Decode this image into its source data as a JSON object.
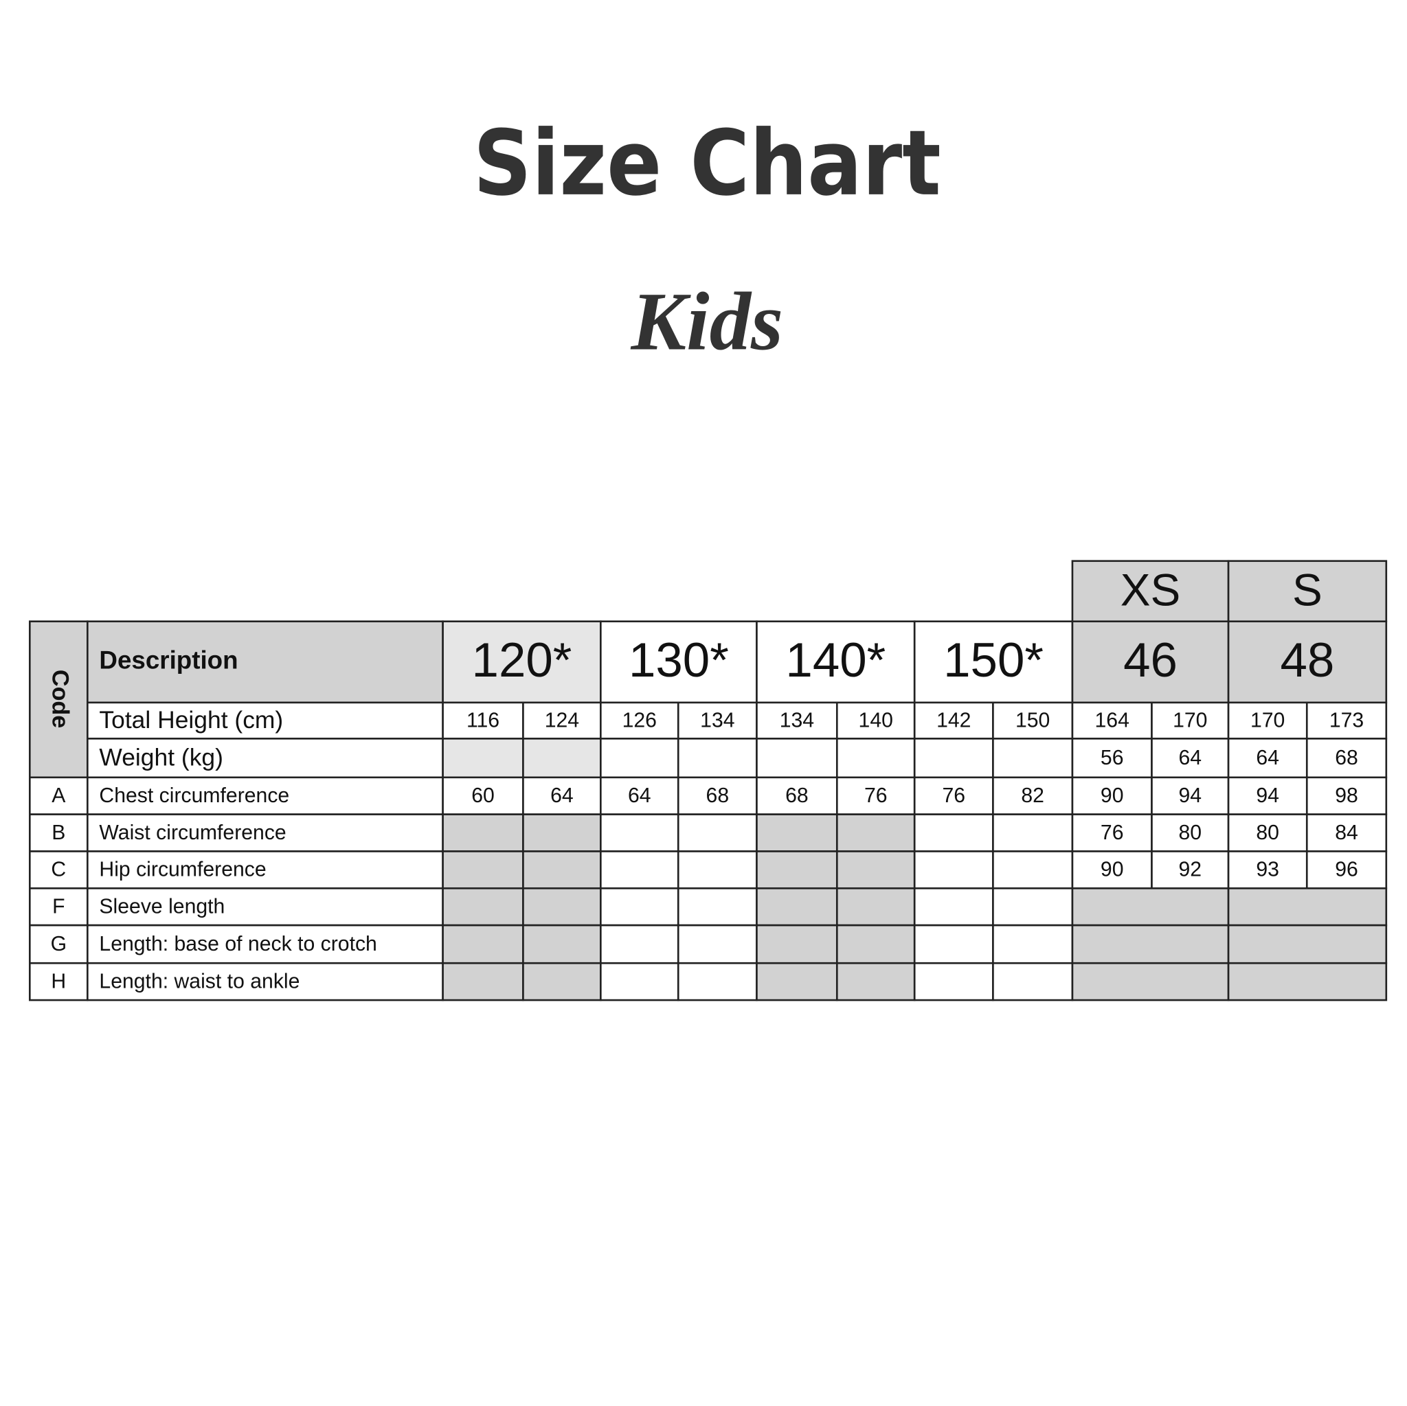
{
  "header": {
    "title": "Size Chart",
    "subtitle": "Kids"
  },
  "table": {
    "code_header": "Code",
    "description_header": "Description",
    "size_letters": [
      null,
      null,
      null,
      null,
      "XS",
      "S"
    ],
    "sizes": [
      "120*",
      "130*",
      "140*",
      "150*",
      "46",
      "48"
    ],
    "rows": [
      {
        "label": "Total Height (cm)",
        "values": [
          116,
          124,
          126,
          134,
          134,
          140,
          142,
          150,
          164,
          170,
          170,
          173
        ]
      },
      {
        "label": "Weight (kg)",
        "values": [
          null,
          null,
          null,
          null,
          null,
          null,
          null,
          null,
          56,
          64,
          64,
          68
        ]
      },
      {
        "code": "A",
        "label": "Chest circumference",
        "values": [
          60,
          64,
          64,
          68,
          68,
          76,
          76,
          82,
          90,
          94,
          94,
          98
        ]
      },
      {
        "code": "B",
        "label": "Waist circumference",
        "values": [
          null,
          null,
          null,
          null,
          null,
          null,
          null,
          null,
          76,
          80,
          80,
          84
        ]
      },
      {
        "code": "C",
        "label": "Hip circumference",
        "values": [
          null,
          null,
          null,
          null,
          null,
          null,
          null,
          null,
          90,
          92,
          93,
          96
        ]
      },
      {
        "code": "F",
        "label": "Sleeve length",
        "values": [
          null,
          null,
          null,
          null,
          null,
          null,
          null,
          null,
          null,
          null,
          null,
          null
        ]
      },
      {
        "code": "G",
        "label": "Length: base of neck to crotch",
        "values": [
          null,
          null,
          null,
          null,
          null,
          null,
          null,
          null,
          null,
          null,
          null,
          null
        ]
      },
      {
        "code": "H",
        "label": "Length: waist to ankle",
        "values": [
          null,
          null,
          null,
          null,
          null,
          null,
          null,
          null,
          null,
          null,
          null,
          null
        ]
      }
    ]
  }
}
